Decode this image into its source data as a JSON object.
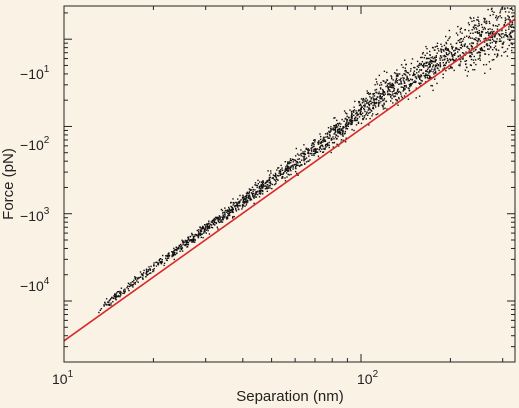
{
  "chart_data": {
    "type": "scatter",
    "title": "",
    "xlabel": "Separation (nm)",
    "ylabel": "Force (pN)",
    "x_scale": "log",
    "y_scale": "log",
    "xlim": [
      10,
      330
    ],
    "ylim": [
      -2e-05,
      -0.24
    ],
    "grid": false,
    "legend": "none",
    "x_ticks": [
      {
        "value": 10,
        "base": "10",
        "exp": "1"
      },
      {
        "value": 100,
        "base": "10",
        "exp": "2"
      }
    ],
    "y_ticks": [
      {
        "value": -0.1,
        "prefix": "−",
        "base": "10",
        "exp": "1"
      },
      {
        "value": -0.01,
        "prefix": "−",
        "base": "10",
        "exp": "2"
      },
      {
        "value": -0.001,
        "prefix": "−",
        "base": "10",
        "exp": "3"
      },
      {
        "value": -0.0001,
        "prefix": "−",
        "base": "10",
        "exp": "4"
      }
    ],
    "fit_line": {
      "color": "#d62a2a",
      "points": [
        {
          "x": 10,
          "y": -3.5e-05
        },
        {
          "x": 330,
          "y": -0.17
        }
      ]
    },
    "scatter_trend": [
      {
        "x": 13,
        "y": -8e-05
      },
      {
        "x": 20,
        "y": -0.00025
      },
      {
        "x": 30,
        "y": -0.0007
      },
      {
        "x": 50,
        "y": -0.0025
      },
      {
        "x": 80,
        "y": -0.008
      },
      {
        "x": 120,
        "y": -0.025
      },
      {
        "x": 200,
        "y": -0.07
      },
      {
        "x": 320,
        "y": -0.15
      }
    ],
    "point_color": "#111111"
  }
}
